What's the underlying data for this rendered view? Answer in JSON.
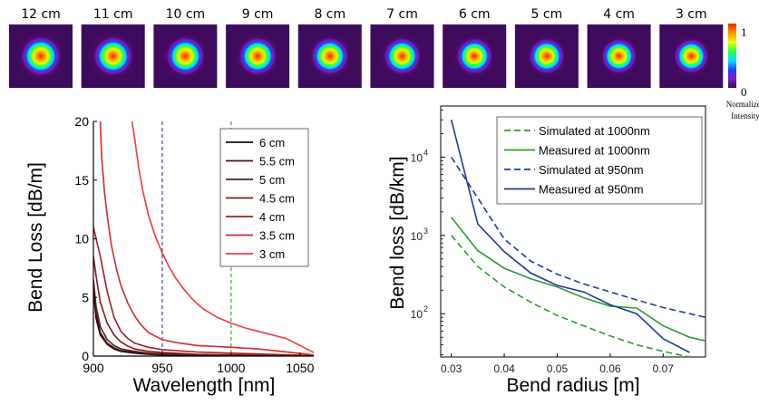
{
  "mode_images": {
    "labels": [
      "12 cm",
      "11 cm",
      "10 cm",
      "9 cm",
      "8 cm",
      "7 cm",
      "6 cm",
      "5 cm",
      "4 cm",
      "3 cm"
    ],
    "colorbar": {
      "max_label": "1",
      "min_label": "0",
      "caption_line1": "Normalized",
      "caption_line2": "Intensity"
    }
  },
  "chart_data": [
    {
      "type": "line",
      "xlabel": "Wavelength [nm]",
      "ylabel": "Bend Loss [dB/m]",
      "xlim": [
        900,
        1060
      ],
      "ylim": [
        0,
        20
      ],
      "xticks": [
        "900",
        "950",
        "1000",
        "1050"
      ],
      "yticks": [
        "0",
        "5",
        "10",
        "15",
        "20"
      ],
      "legend_position": "top-right",
      "vlines": [
        {
          "x": 950,
          "color": "#1f3a9e",
          "style": "dashed"
        },
        {
          "x": 1000,
          "color": "#2e9a2e",
          "style": "dashed"
        }
      ],
      "series": [
        {
          "name": "6 cm",
          "color": "#1a0a0a",
          "x": [
            900,
            902,
            905,
            910,
            915,
            920,
            930,
            940,
            950,
            975,
            1000,
            1060
          ],
          "y": [
            5.5,
            3.2,
            1.8,
            1.0,
            0.6,
            0.4,
            0.25,
            0.15,
            0.1,
            0.05,
            0.03,
            0.0
          ]
        },
        {
          "name": "5.5 cm",
          "color": "#3a1515",
          "x": [
            900,
            902,
            905,
            910,
            915,
            920,
            930,
            940,
            950,
            975,
            1000,
            1060
          ],
          "y": [
            5.8,
            3.6,
            2.0,
            1.1,
            0.7,
            0.45,
            0.3,
            0.18,
            0.12,
            0.06,
            0.04,
            0.0
          ]
        },
        {
          "name": "5 cm",
          "color": "#5e1a1a",
          "x": [
            900,
            902,
            905,
            910,
            915,
            920,
            930,
            940,
            950,
            975,
            1000,
            1060
          ],
          "y": [
            6.5,
            4.2,
            2.5,
            1.4,
            0.9,
            0.6,
            0.4,
            0.25,
            0.18,
            0.1,
            0.06,
            0.01
          ]
        },
        {
          "name": "4.5 cm",
          "color": "#7e1c1c",
          "x": [
            900,
            902,
            905,
            910,
            915,
            920,
            925,
            930,
            940,
            950,
            975,
            1000,
            1060
          ],
          "y": [
            8.5,
            6.8,
            4.6,
            2.8,
            1.8,
            1.2,
            0.85,
            0.6,
            0.4,
            0.3,
            0.15,
            0.1,
            0.02
          ]
        },
        {
          "name": "4 cm",
          "color": "#a51d1d",
          "x": [
            900,
            902,
            905,
            910,
            915,
            920,
            925,
            930,
            940,
            950,
            975,
            1000,
            1060
          ],
          "y": [
            11,
            10,
            8.5,
            5.5,
            3.3,
            2.1,
            1.5,
            1.1,
            0.75,
            0.55,
            0.35,
            0.25,
            0.05
          ]
        },
        {
          "name": "3.5 cm",
          "color": "#d42a2a",
          "x": [
            905,
            906,
            908,
            910,
            913,
            917,
            920,
            925,
            930,
            935,
            940,
            950,
            960,
            975,
            1000,
            1020,
            1060
          ],
          "y": [
            20,
            17,
            14,
            12,
            9.5,
            7.3,
            6.0,
            4.5,
            3.4,
            2.6,
            2.0,
            1.4,
            1.15,
            0.9,
            0.75,
            0.6,
            0.1
          ]
        },
        {
          "name": "3 cm",
          "color": "#f33a3a",
          "x": [
            928,
            930,
            933,
            936,
            940,
            945,
            950,
            955,
            960,
            965,
            970,
            975,
            980,
            990,
            1000,
            1010,
            1020,
            1030,
            1040,
            1050,
            1060
          ],
          "y": [
            20,
            18.5,
            16,
            14,
            12,
            10.2,
            8.8,
            7.6,
            6.6,
            5.8,
            5.1,
            4.5,
            4.0,
            3.3,
            2.8,
            2.4,
            2.1,
            1.8,
            1.5,
            0.9,
            0.3
          ]
        }
      ]
    },
    {
      "type": "line",
      "xlabel": "Bend radius [m]",
      "ylabel": "Bend loss [dB/km]",
      "yscale": "log",
      "xlim": [
        0.028,
        0.078
      ],
      "ylim": [
        28,
        45000
      ],
      "xticks": [
        "0.03",
        "0.04",
        "0.05",
        "0.06",
        "0.07"
      ],
      "yticks": [
        {
          "value": 10000,
          "label": "10",
          "exp": "4"
        },
        {
          "value": 1000,
          "label": "10",
          "exp": "3"
        },
        {
          "value": 100,
          "label": "10",
          "exp": "2"
        }
      ],
      "legend_position": "top-right",
      "series": [
        {
          "name": "Simulated at 1000nm",
          "color": "#2e9a2e",
          "style": "dashed",
          "x": [
            0.03,
            0.035,
            0.04,
            0.045,
            0.05,
            0.055,
            0.06,
            0.065,
            0.07,
            0.075
          ],
          "y": [
            1000,
            400,
            220,
            140,
            95,
            70,
            52,
            40,
            33,
            28
          ]
        },
        {
          "name": "Measured at 1000nm",
          "color": "#2e9a2e",
          "style": "solid",
          "x": [
            0.03,
            0.035,
            0.04,
            0.045,
            0.05,
            0.055,
            0.06,
            0.065,
            0.07,
            0.075,
            0.078
          ],
          "y": [
            1700,
            640,
            380,
            280,
            220,
            160,
            125,
            118,
            70,
            50,
            45
          ]
        },
        {
          "name": "Simulated at 950nm",
          "color": "#1f3a9e",
          "style": "dashed",
          "x": [
            0.03,
            0.035,
            0.04,
            0.045,
            0.05,
            0.055,
            0.06,
            0.065,
            0.07,
            0.075,
            0.078
          ],
          "y": [
            10000,
            3000,
            900,
            470,
            320,
            240,
            190,
            150,
            120,
            100,
            90
          ]
        },
        {
          "name": "Measured at 950nm",
          "color": "#1f3a9e",
          "style": "solid",
          "x": [
            0.03,
            0.035,
            0.04,
            0.045,
            0.05,
            0.055,
            0.06,
            0.065,
            0.07,
            0.075
          ],
          "y": [
            30000,
            1400,
            620,
            330,
            230,
            190,
            130,
            100,
            48,
            32
          ]
        }
      ]
    }
  ]
}
